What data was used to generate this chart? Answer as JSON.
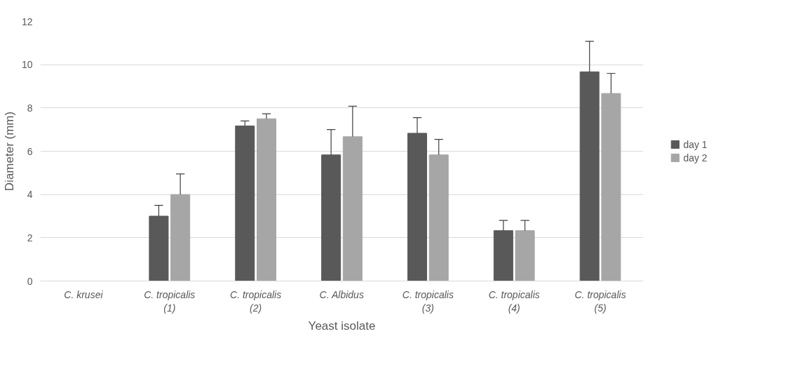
{
  "chart_data": {
    "type": "bar",
    "xlabel": "Yeast isolate",
    "ylabel": "Diameter (mm)",
    "categories": [
      "C. krusei",
      "C. tropicalis (1)",
      "C. tropicalis (2)",
      "C. Albidus",
      "C. tropicalis (3)",
      "C. tropicalis (4)",
      "C. tropicalis (5)"
    ],
    "series": [
      {
        "name": "day 1",
        "color": "#595959",
        "values": [
          0,
          3.0,
          7.17,
          5.83,
          6.83,
          2.33,
          9.67
        ],
        "errors": [
          null,
          [
            3.0,
            3.5
          ],
          [
            7.17,
            7.4
          ],
          [
            5.83,
            7.0
          ],
          [
            6.83,
            7.55
          ],
          [
            2.33,
            2.8
          ],
          [
            9.67,
            11.08
          ]
        ]
      },
      {
        "name": "day 2",
        "color": "#a6a6a6",
        "values": [
          0,
          4.0,
          7.5,
          6.67,
          5.83,
          2.33,
          8.67
        ],
        "errors": [
          null,
          [
            4.0,
            4.95
          ],
          [
            7.5,
            7.73
          ],
          [
            6.67,
            8.08
          ],
          [
            5.83,
            6.55
          ],
          [
            2.33,
            2.8
          ],
          [
            8.67,
            9.6
          ]
        ]
      }
    ],
    "ylim": [
      0,
      12
    ],
    "yticks": [
      0,
      2,
      4,
      6,
      8,
      10,
      12
    ],
    "grid": "y",
    "legend": "right"
  }
}
